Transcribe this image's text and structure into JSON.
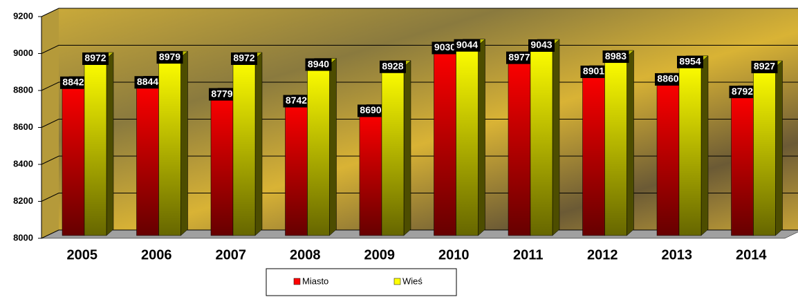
{
  "chart_data": {
    "type": "bar3d",
    "categories": [
      "2005",
      "2006",
      "2007",
      "2008",
      "2009",
      "2010",
      "2011",
      "2012",
      "2013",
      "2014"
    ],
    "series": [
      {
        "name": "Miasto",
        "color": "#ff0000",
        "values": [
          8842,
          8844,
          8779,
          8742,
          8690,
          9030,
          8977,
          8901,
          8860,
          8792
        ]
      },
      {
        "name": "Wieś",
        "color": "#ffff00",
        "values": [
          8972,
          8979,
          8972,
          8940,
          8928,
          9044,
          9043,
          8983,
          8954,
          8927
        ]
      }
    ],
    "ylim": [
      8000,
      9200
    ],
    "yticks": [
      8000,
      8200,
      8400,
      8600,
      8800,
      9000,
      9200
    ],
    "grid": true,
    "legend": "bottom"
  }
}
